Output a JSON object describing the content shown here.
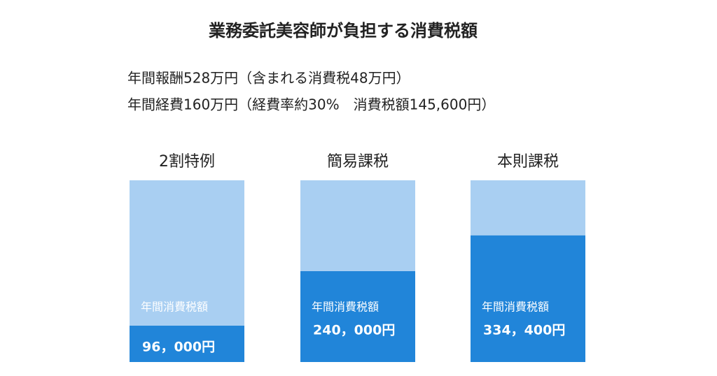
{
  "chart_data": {
    "type": "bar",
    "title": "業務委託美容師が負担する消費税額",
    "subtitle_lines": [
      "年間報酬528万円（含まれる消費税48万円）",
      "年間経費160万円（経費率約30%　消費税額145,600円）"
    ],
    "categories": [
      "2割特例",
      "簡易課税",
      "本則課税"
    ],
    "values": [
      96000,
      240000,
      334400
    ],
    "value_labels": [
      "96，000円",
      "240，000円",
      "334，400円"
    ],
    "value_caption": "年間消費税額",
    "ylim": [
      0,
      480000
    ],
    "color": "#2185d9",
    "background_color": "#a9cff2"
  }
}
